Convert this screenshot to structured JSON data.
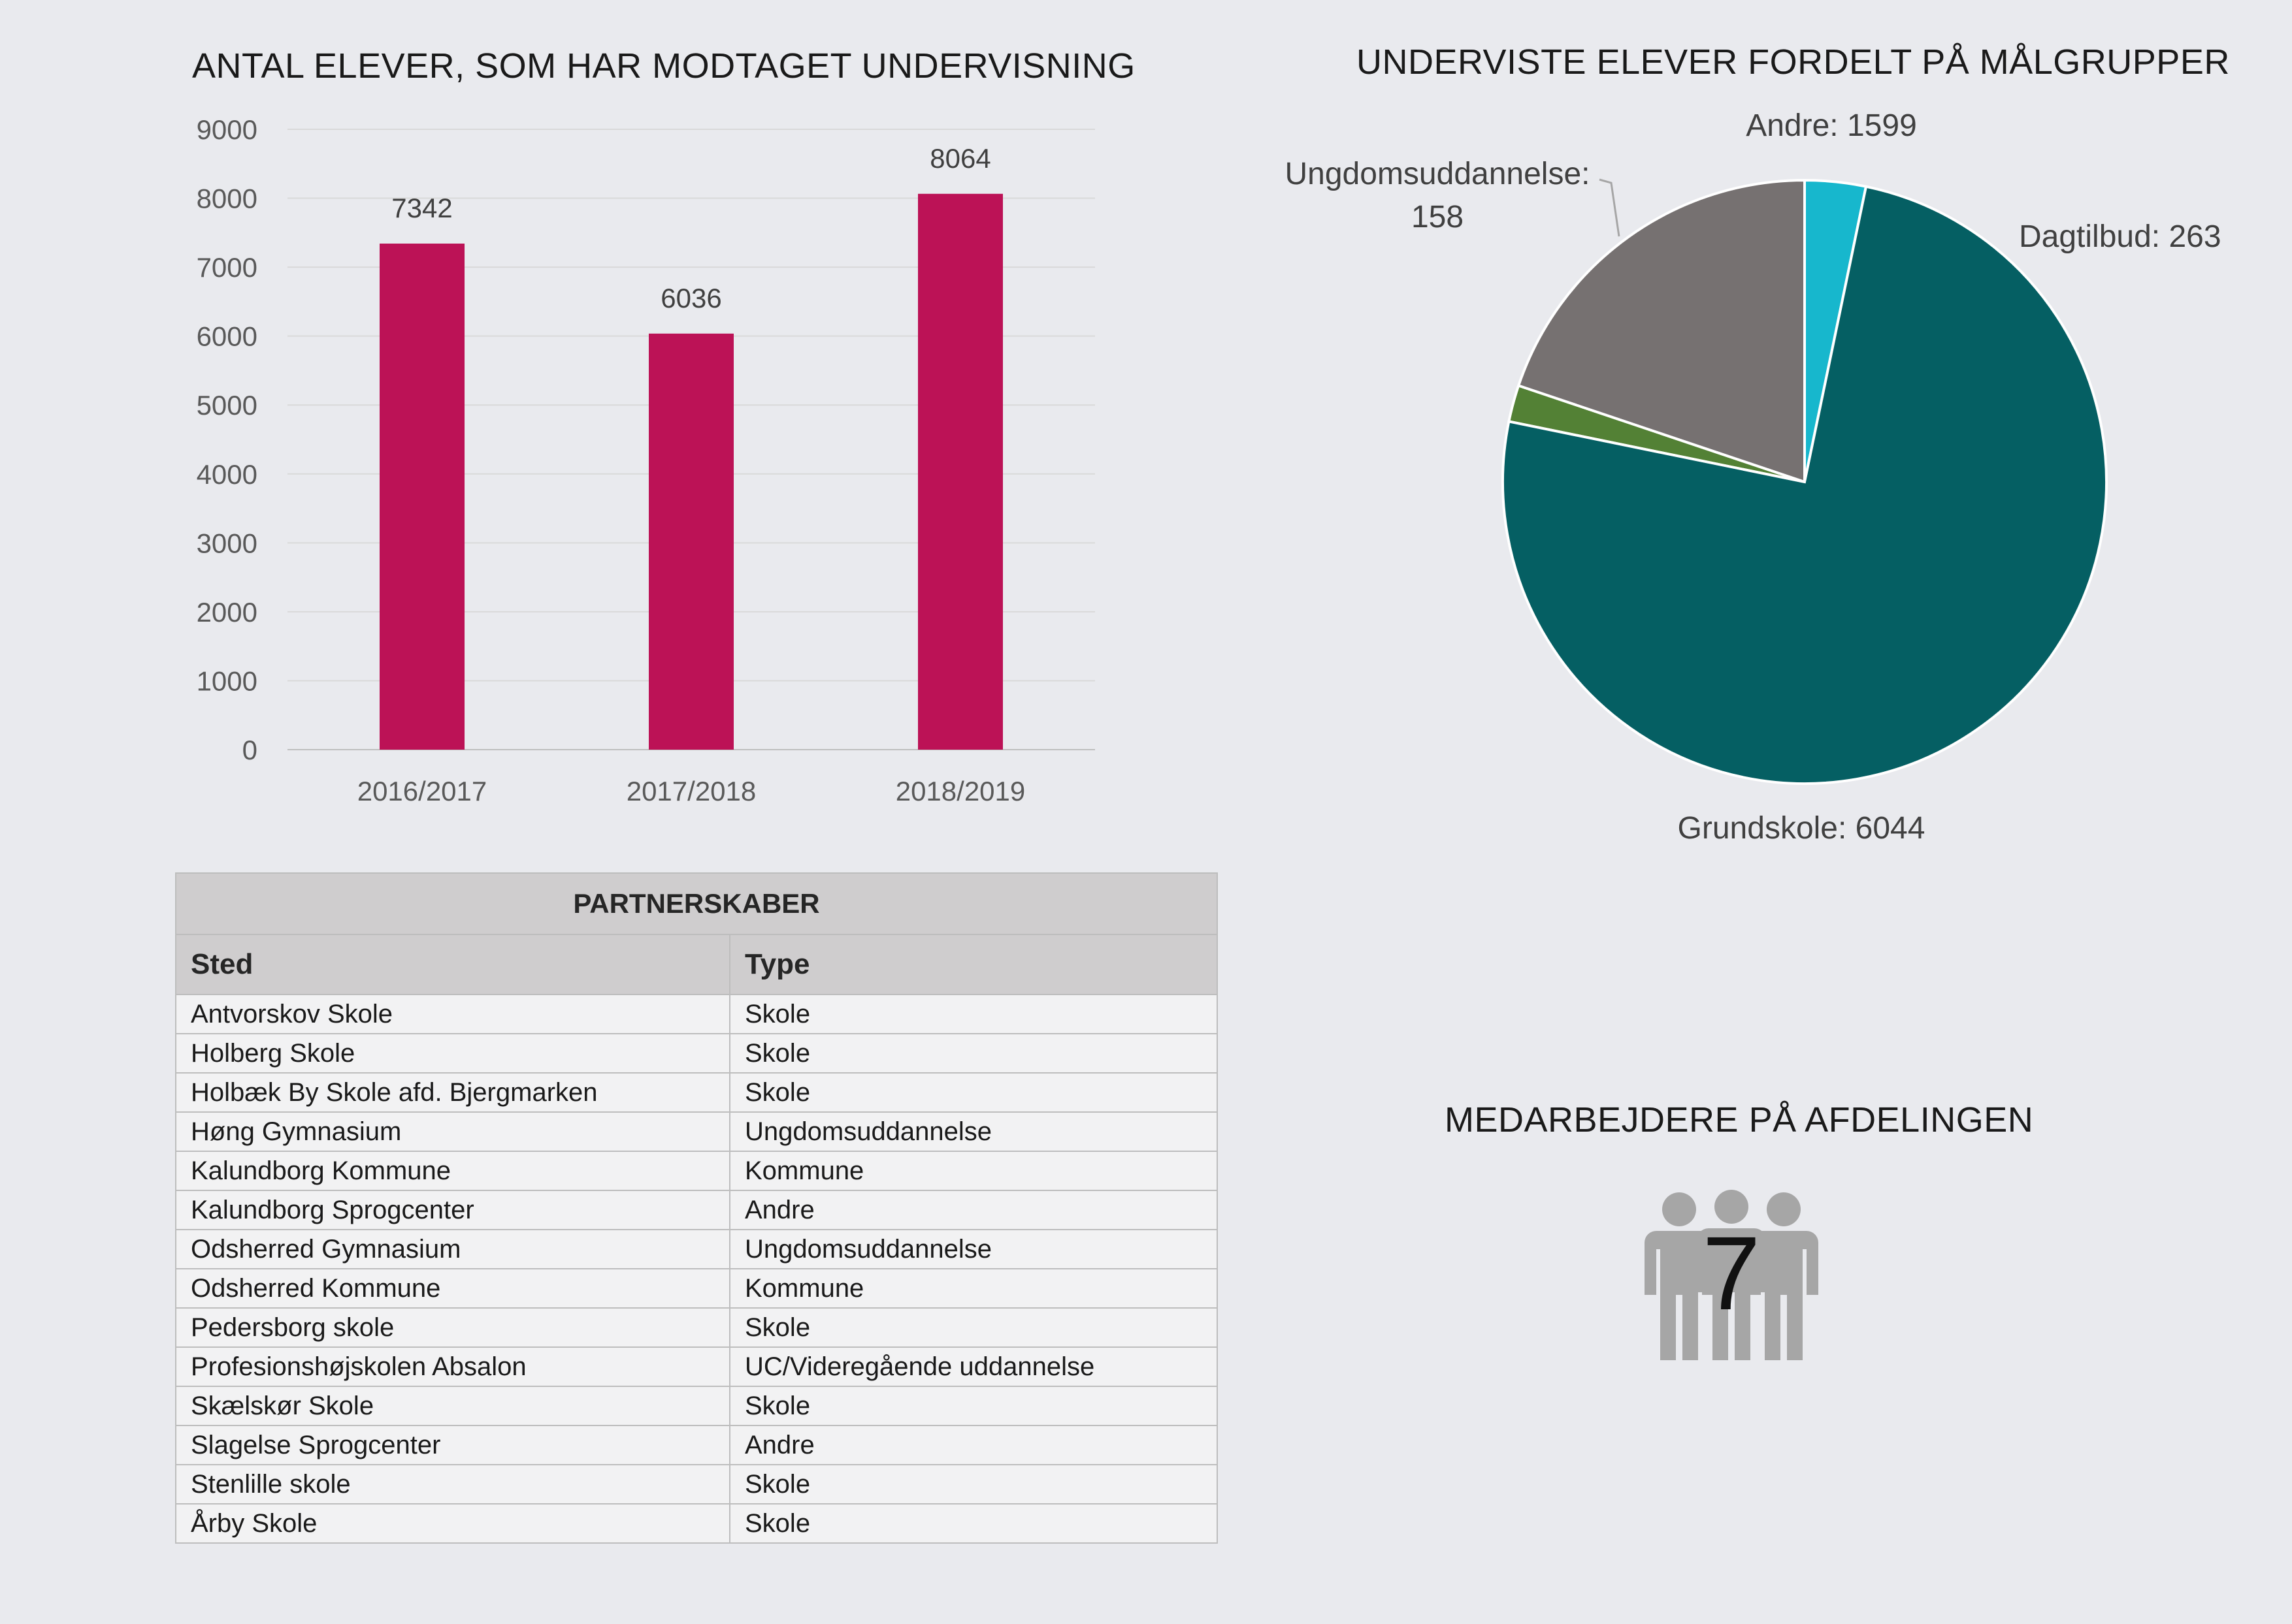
{
  "bar_chart": {
    "title": "ANTAL ELEVER, SOM HAR MODTAGET UNDERVISNING"
  },
  "pie_chart": {
    "title": "UNDERVISTE ELEVER FORDELT PÅ MÅLGRUPPER",
    "labels": {
      "andre": "Andre: 1599",
      "dagtilbud": "Dagtilbud: 263",
      "grundskole": "Grundskole: 6044",
      "ungdom_line1": "Ungdomsuddannelse:",
      "ungdom_line2": "158"
    }
  },
  "chart_data": [
    {
      "type": "bar",
      "title": "ANTAL ELEVER, SOM HAR MODTAGET UNDERVISNING",
      "categories": [
        "2016/2017",
        "2017/2018",
        "2018/2019"
      ],
      "values": [
        7342,
        6036,
        8064
      ],
      "ylim": [
        0,
        9000
      ],
      "yticks": [
        0,
        1000,
        2000,
        3000,
        4000,
        5000,
        6000,
        7000,
        8000,
        9000
      ],
      "grid": true,
      "colors": {
        "bar": "#bc1256"
      }
    },
    {
      "type": "pie",
      "title": "UNDERVISTE ELEVER FORDELT PÅ MÅLGRUPPER",
      "slices": [
        {
          "label": "Ungdomsuddannelse",
          "value": 158,
          "color": "#538135"
        },
        {
          "label": "Andre",
          "value": 1599,
          "color": "#767171"
        },
        {
          "label": "Dagtilbud",
          "value": 263,
          "color": "#17b7cd"
        },
        {
          "label": "Grundskole",
          "value": 6044,
          "color": "#055f63"
        }
      ]
    }
  ],
  "partners": {
    "title": "PARTNERSKABER",
    "headers": [
      "Sted",
      "Type"
    ],
    "rows": [
      [
        "Antvorskov Skole",
        "Skole"
      ],
      [
        "Holberg Skole",
        "Skole"
      ],
      [
        "Holbæk By Skole afd. Bjergmarken",
        "Skole"
      ],
      [
        "Høng Gymnasium",
        "Ungdomsuddannelse"
      ],
      [
        "Kalundborg Kommune",
        "Kommune"
      ],
      [
        "Kalundborg Sprogcenter",
        "Andre"
      ],
      [
        "Odsherred Gymnasium",
        "Ungdomsuddannelse"
      ],
      [
        "Odsherred Kommune",
        "Kommune"
      ],
      [
        "Pedersborg skole",
        "Skole"
      ],
      [
        "Profesionshøjskolen Absalon",
        "UC/Videregående uddannelse"
      ],
      [
        "Skælskør Skole",
        "Skole"
      ],
      [
        "Slagelse Sprogcenter",
        "Andre"
      ],
      [
        "Stenlille skole",
        "Skole"
      ],
      [
        "Årby Skole",
        "Skole"
      ]
    ]
  },
  "staff": {
    "title": "MEDARBEJDERE PÅ AFDELINGEN",
    "count": "7",
    "icon": "people-group-icon",
    "icon_color": "#a6a6a6"
  }
}
